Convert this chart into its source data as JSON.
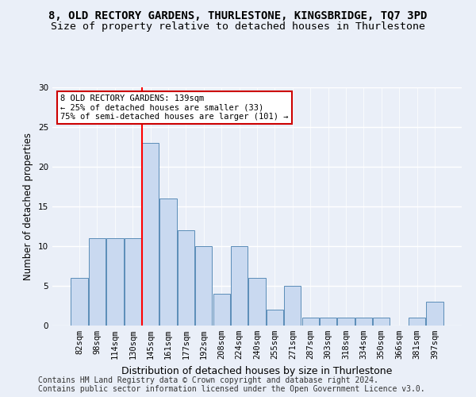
{
  "title1": "8, OLD RECTORY GARDENS, THURLESTONE, KINGSBRIDGE, TQ7 3PD",
  "title2": "Size of property relative to detached houses in Thurlestone",
  "xlabel": "Distribution of detached houses by size in Thurlestone",
  "ylabel": "Number of detached properties",
  "footer1": "Contains HM Land Registry data © Crown copyright and database right 2024.",
  "footer2": "Contains public sector information licensed under the Open Government Licence v3.0.",
  "categories": [
    "82sqm",
    "98sqm",
    "114sqm",
    "130sqm",
    "145sqm",
    "161sqm",
    "177sqm",
    "192sqm",
    "208sqm",
    "224sqm",
    "240sqm",
    "255sqm",
    "271sqm",
    "287sqm",
    "303sqm",
    "318sqm",
    "334sqm",
    "350sqm",
    "366sqm",
    "381sqm",
    "397sqm"
  ],
  "values": [
    6,
    11,
    11,
    11,
    23,
    16,
    12,
    10,
    4,
    10,
    6,
    2,
    5,
    1,
    1,
    1,
    1,
    1,
    0,
    1,
    3
  ],
  "bar_color": "#c9d9f0",
  "bar_edge_color": "#5b8db8",
  "red_line_x": 3.52,
  "annotation_text": "8 OLD RECTORY GARDENS: 139sqm\n← 25% of detached houses are smaller (33)\n75% of semi-detached houses are larger (101) →",
  "annotation_box_color": "#ffffff",
  "annotation_box_edge": "#cc0000",
  "ylim": [
    0,
    30
  ],
  "yticks": [
    0,
    5,
    10,
    15,
    20,
    25,
    30
  ],
  "background_color": "#eaeff8",
  "grid_color": "#ffffff",
  "title1_fontsize": 10,
  "title2_fontsize": 9.5,
  "xlabel_fontsize": 9,
  "ylabel_fontsize": 8.5,
  "tick_fontsize": 7.5,
  "footer_fontsize": 7,
  "ann_fontsize": 7.5
}
